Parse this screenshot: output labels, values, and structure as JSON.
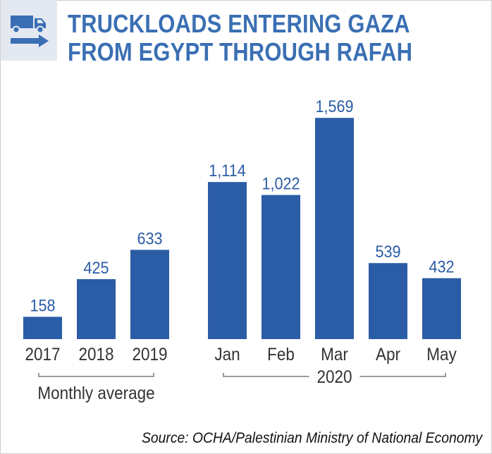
{
  "header": {
    "icon": "truck-arrow-icon",
    "title_line1": "TRUCKLOADS ENTERING GAZA",
    "title_line2": "FROM EGYPT THROUGH RAFAH"
  },
  "colors": {
    "bar": "#2b5ca6",
    "title": "#3a6fb3",
    "label": "#2b5ca6",
    "text": "#333333",
    "bracket": "#9a9a9a",
    "icon_bg": "#e3e8f1"
  },
  "chart_data": {
    "type": "bar",
    "ylim": [
      0,
      1700
    ],
    "groups": [
      {
        "label": "Monthly average",
        "categories": [
          "2017",
          "2018",
          "2019"
        ],
        "values": [
          158,
          425,
          633
        ],
        "value_labels": [
          "158",
          "425",
          "633"
        ]
      },
      {
        "label": "2020",
        "categories": [
          "Jan",
          "Feb",
          "Mar",
          "Apr",
          "May"
        ],
        "values": [
          1114,
          1022,
          1569,
          539,
          432
        ],
        "value_labels": [
          "1,114",
          "1,022",
          "1,569",
          "539",
          "432"
        ]
      }
    ]
  },
  "source": "Source: OCHA/Palestinian Ministry of National Economy"
}
